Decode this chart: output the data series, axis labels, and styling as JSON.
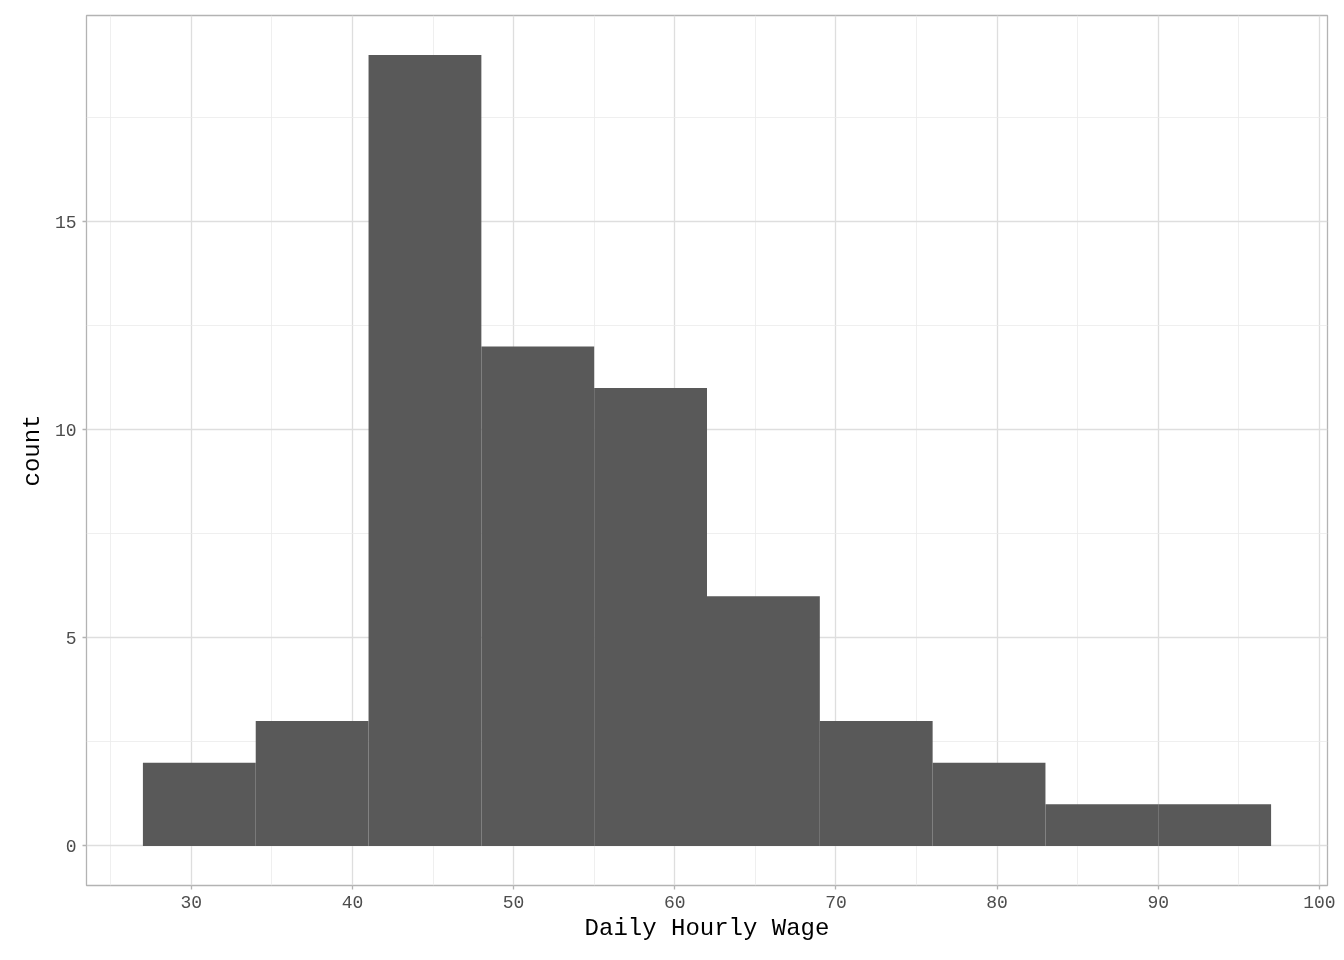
{
  "chart_data": {
    "type": "histogram",
    "xlabel": "Daily Hourly Wage",
    "ylabel": "count",
    "bins": [
      27,
      34,
      41,
      48,
      55,
      62,
      69,
      76,
      83,
      90,
      97
    ],
    "values": [
      2,
      3,
      19,
      12,
      11,
      6,
      3,
      2,
      1,
      1
    ],
    "color": "#595959",
    "xlim": [
      23.5,
      100.5
    ],
    "xticks": [
      30,
      40,
      50,
      60,
      70,
      80,
      90,
      100
    ],
    "ylim": [
      -0.95,
      19.95
    ],
    "yticks": [
      0,
      5,
      10,
      15
    ],
    "grid": true
  }
}
